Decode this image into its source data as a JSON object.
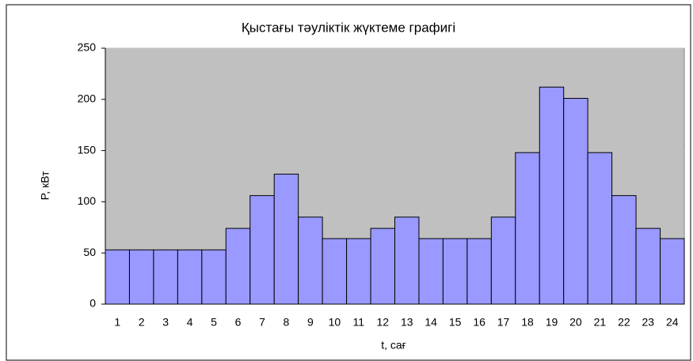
{
  "chart_data": {
    "type": "bar",
    "title": "Қыстағы тәуліктік жүктеме графигі",
    "x_label": "t, сағ",
    "y_label": "P, кВт",
    "categories": [
      "1",
      "2",
      "3",
      "4",
      "5",
      "6",
      "7",
      "8",
      "9",
      "10",
      "11",
      "12",
      "13",
      "14",
      "15",
      "16",
      "17",
      "18",
      "19",
      "20",
      "21",
      "22",
      "23",
      "24"
    ],
    "values": [
      53,
      53,
      53,
      53,
      53,
      74,
      106,
      127,
      85,
      64,
      64,
      74,
      85,
      64,
      64,
      64,
      85,
      148,
      212,
      201,
      148,
      106,
      74,
      64
    ],
    "color": "#9999ff",
    "ylim": [
      0,
      250
    ],
    "yticks": [
      0,
      50,
      100,
      150,
      200,
      250
    ],
    "grid": true
  }
}
